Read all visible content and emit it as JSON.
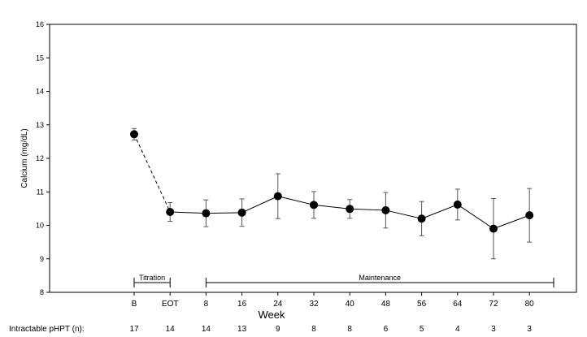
{
  "chart_data": {
    "type": "line",
    "xlabel": "Week",
    "ylabel": "Calcium (mg/dL)",
    "ylim": [
      8,
      16
    ],
    "y_ticks": [
      8,
      9,
      10,
      11,
      12,
      13,
      14,
      15,
      16
    ],
    "grid": false,
    "categories": [
      "B",
      "EOT",
      "8",
      "16",
      "24",
      "32",
      "40",
      "48",
      "56",
      "64",
      "72",
      "80"
    ],
    "series": [
      {
        "values": [
          12.72,
          10.4,
          10.36,
          10.38,
          10.87,
          10.61,
          10.49,
          10.45,
          10.2,
          10.62,
          9.9,
          10.3
        ],
        "error_low": [
          12.55,
          10.12,
          9.96,
          9.97,
          10.2,
          10.21,
          10.21,
          9.92,
          9.69,
          10.16,
          9.0,
          9.5
        ],
        "error_high": [
          12.89,
          10.68,
          10.76,
          10.79,
          11.54,
          11.01,
          10.77,
          10.98,
          10.71,
          11.08,
          10.8,
          11.1
        ],
        "dashed_segment": [
          0,
          1
        ]
      }
    ],
    "phases": [
      {
        "label": "Titration",
        "start": "B",
        "end": "EOT"
      },
      {
        "label": "Maintenance",
        "start": "8",
        "end_extends_past": "80"
      }
    ],
    "table": {
      "label": "Intractable pHPT (n):",
      "values": [
        "17",
        "14",
        "14",
        "13",
        "9",
        "8",
        "8",
        "6",
        "5",
        "4",
        "3",
        "3"
      ]
    }
  }
}
